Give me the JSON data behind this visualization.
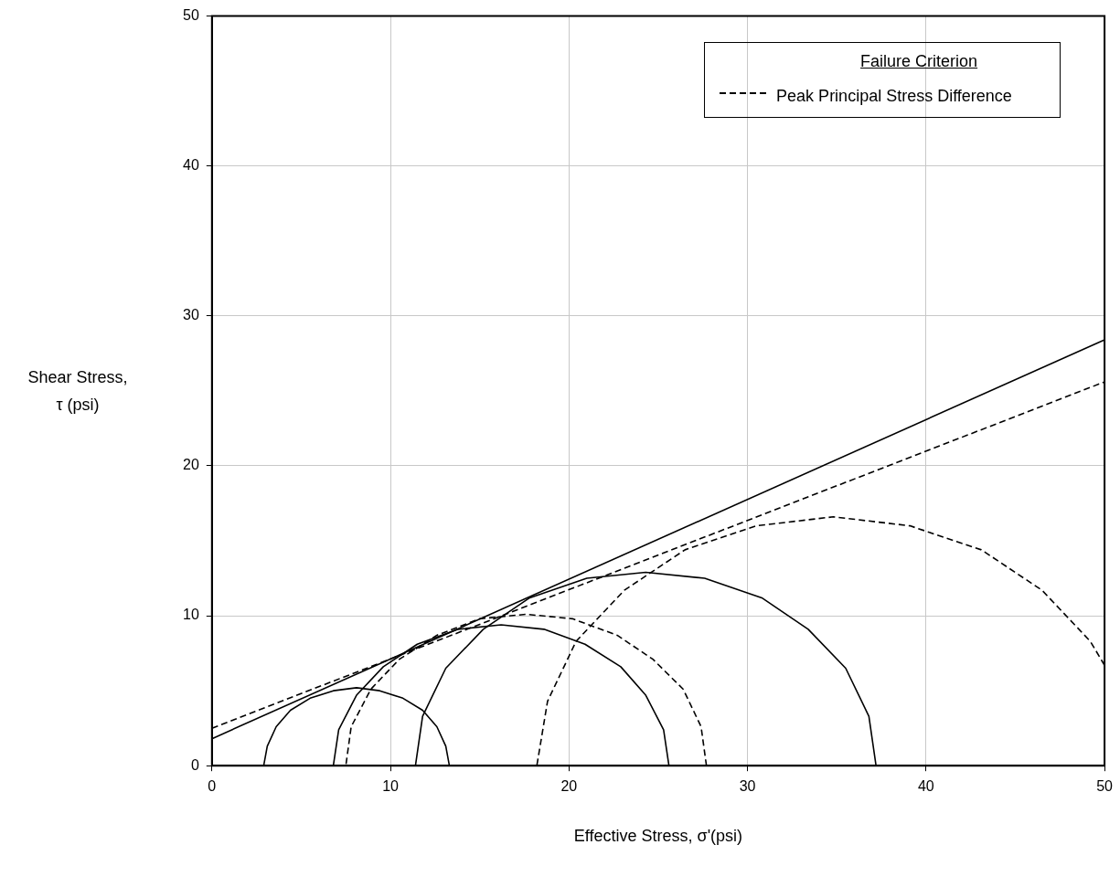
{
  "chart_data": {
    "type": "line",
    "xlabel": "Effective Stress, σ'(psi)",
    "ylabel": "Shear Stress, τ (psi)",
    "legend_title": "Failure Criterion",
    "legend": "top right",
    "grid": true,
    "marker": "none",
    "xlim": [
      0,
      50
    ],
    "ylim": [
      0,
      50
    ],
    "xticks": [
      0,
      10,
      20,
      30,
      40,
      50
    ],
    "yticks": [
      0,
      10,
      20,
      30,
      40,
      50
    ],
    "series": [
      {
        "color": "#000000",
        "line_style": "solid",
        "x": [
          0,
          50
        ],
        "values": [
          1.8,
          28.4
        ]
      },
      {
        "name": "Peak Principal Stress Difference",
        "color": "#000000",
        "line_style": "dashed",
        "x": [
          0,
          50
        ],
        "values": [
          2.5,
          25.6
        ]
      },
      {
        "color": "#000000",
        "line_style": "solid",
        "x": [
          13.3,
          13.1,
          12.6,
          11.8,
          10.7,
          9.4,
          8.1,
          6.8,
          5.5,
          4.4,
          3.6,
          3.1,
          2.9
        ],
        "values": [
          0,
          1.3,
          2.6,
          3.7,
          4.5,
          5.0,
          5.2,
          5.0,
          4.5,
          3.7,
          2.6,
          1.3,
          0
        ]
      },
      {
        "color": "#000000",
        "line_style": "solid",
        "x": [
          25.6,
          25.3,
          24.3,
          22.9,
          20.9,
          18.6,
          16.2,
          13.8,
          11.5,
          9.6,
          8.1,
          7.1,
          6.8
        ],
        "values": [
          0,
          2.4,
          4.7,
          6.6,
          8.1,
          9.1,
          9.4,
          9.1,
          8.1,
          6.6,
          4.7,
          2.4,
          0
        ]
      },
      {
        "color": "#000000",
        "line_style": "dashed",
        "x": [
          27.7,
          27.4,
          26.4,
          24.7,
          22.7,
          20.2,
          17.6,
          15.0,
          12.6,
          10.5,
          8.9,
          7.8,
          7.5
        ],
        "values": [
          0,
          2.6,
          5.1,
          7.1,
          8.7,
          9.8,
          10.1,
          9.8,
          8.7,
          7.1,
          5.1,
          2.6,
          0
        ]
      },
      {
        "color": "#000000",
        "line_style": "solid",
        "x": [
          37.2,
          36.8,
          35.5,
          33.4,
          30.8,
          27.6,
          24.3,
          21.0,
          17.8,
          15.2,
          13.1,
          11.8,
          11.4
        ],
        "values": [
          0,
          3.3,
          6.5,
          9.1,
          11.2,
          12.5,
          12.9,
          12.5,
          11.2,
          9.1,
          6.5,
          3.3,
          0
        ]
      },
      {
        "color": "#000000",
        "line_style": "dashed",
        "x": [
          50,
          49.2,
          46.5,
          43.1,
          39.1,
          34.8,
          30.5,
          26.5,
          23.1,
          20.4,
          18.8,
          18.2
        ],
        "values": [
          6.7,
          8.3,
          11.7,
          14.4,
          16.0,
          16.6,
          16.0,
          14.4,
          11.7,
          8.3,
          4.3,
          0
        ]
      }
    ]
  }
}
